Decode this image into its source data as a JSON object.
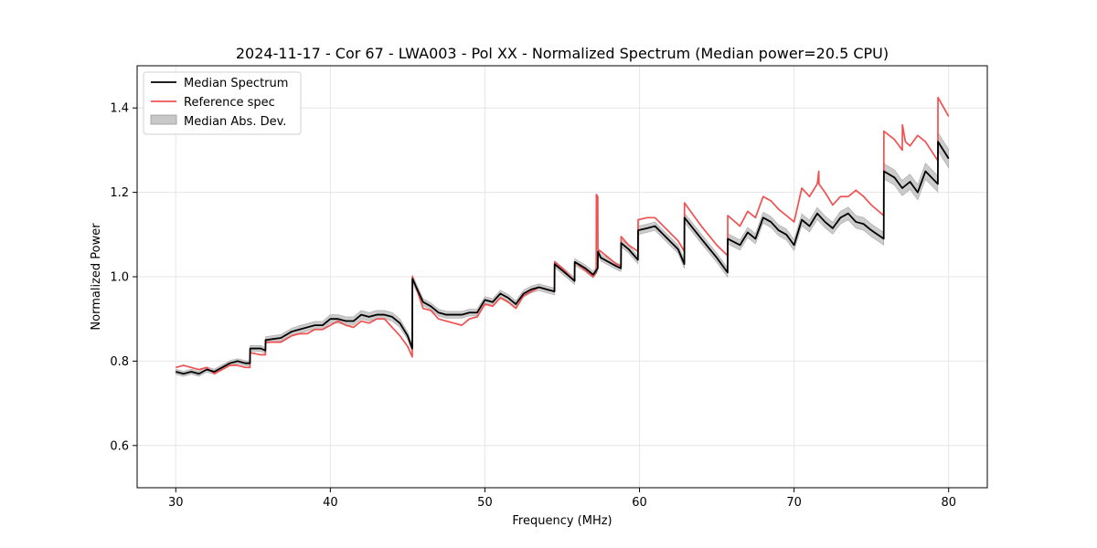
{
  "chart_data": {
    "type": "line",
    "title": "2024-11-17 - Cor 67 - LWA003 - Pol XX - Normalized Spectrum (Median power=20.5 CPU)",
    "xlabel": "Frequency (MHz)",
    "ylabel": "Normalized Power",
    "xlim": [
      27.5,
      82.5
    ],
    "ylim": [
      0.5,
      1.5
    ],
    "xticks": [
      30,
      40,
      50,
      60,
      70,
      80
    ],
    "yticks": [
      0.6,
      0.8,
      1.0,
      1.2,
      1.4
    ],
    "xtick_labels": [
      "30",
      "40",
      "50",
      "60",
      "70",
      "80"
    ],
    "ytick_labels": [
      "0.6",
      "0.8",
      "1.0",
      "1.2",
      "1.4"
    ],
    "grid": true,
    "legend_position": "top-left",
    "legend": [
      "Median Spectrum",
      "Reference spec",
      "Median Abs. Dev."
    ],
    "colors": {
      "median": "#000000",
      "reference": "#f05050",
      "mad": "#c8c8c8"
    },
    "series": [
      {
        "name": "Median Spectrum",
        "x": [
          30.0,
          30.5,
          31.0,
          31.5,
          32.0,
          32.5,
          33.0,
          33.5,
          34.0,
          34.5,
          34.8,
          34.81,
          35.5,
          35.8,
          35.81,
          36.8,
          37.5,
          38.0,
          38.5,
          39.0,
          39.5,
          40.0,
          40.5,
          41.0,
          41.5,
          42.0,
          42.5,
          43.0,
          43.5,
          44.0,
          44.5,
          45.0,
          45.3,
          45.31,
          46.0,
          46.5,
          47.0,
          47.5,
          48.0,
          48.5,
          49.0,
          49.5,
          50.0,
          50.5,
          51.0,
          51.5,
          52.0,
          52.5,
          53.0,
          53.5,
          54.0,
          54.5,
          54.51,
          55.0,
          55.8,
          55.81,
          56.5,
          57.0,
          57.3,
          57.31,
          57.5,
          58.0,
          58.5,
          58.8,
          58.81,
          59.3,
          59.9,
          59.91,
          60.5,
          61.0,
          62.5,
          62.9,
          62.91,
          64.0,
          65.0,
          65.7,
          65.71,
          66.5,
          67.0,
          67.5,
          68.0,
          68.5,
          69.0,
          69.5,
          70.0,
          70.5,
          71.0,
          71.5,
          72.0,
          72.5,
          73.0,
          73.5,
          74.0,
          74.5,
          75.0,
          75.8,
          75.81,
          76.5,
          77.0,
          77.5,
          78.0,
          78.5,
          79.3,
          79.31,
          80.0
        ],
        "values": [
          0.775,
          0.77,
          0.775,
          0.77,
          0.78,
          0.775,
          0.785,
          0.795,
          0.8,
          0.795,
          0.795,
          0.83,
          0.83,
          0.825,
          0.85,
          0.855,
          0.87,
          0.875,
          0.88,
          0.885,
          0.885,
          0.9,
          0.9,
          0.895,
          0.895,
          0.91,
          0.905,
          0.91,
          0.91,
          0.905,
          0.89,
          0.86,
          0.83,
          0.995,
          0.94,
          0.93,
          0.915,
          0.91,
          0.91,
          0.91,
          0.915,
          0.915,
          0.945,
          0.94,
          0.96,
          0.95,
          0.935,
          0.96,
          0.97,
          0.975,
          0.97,
          0.965,
          1.03,
          1.015,
          0.99,
          1.035,
          1.02,
          1.005,
          1.02,
          1.06,
          1.045,
          1.035,
          1.025,
          1.02,
          1.08,
          1.065,
          1.04,
          1.11,
          1.115,
          1.12,
          1.065,
          1.03,
          1.14,
          1.09,
          1.045,
          1.01,
          1.09,
          1.075,
          1.105,
          1.09,
          1.14,
          1.13,
          1.11,
          1.1,
          1.075,
          1.135,
          1.12,
          1.15,
          1.13,
          1.115,
          1.14,
          1.15,
          1.13,
          1.125,
          1.11,
          1.09,
          1.25,
          1.235,
          1.21,
          1.225,
          1.2,
          1.25,
          1.22,
          1.32,
          1.28
        ]
      },
      {
        "name": "Reference spec",
        "x": [
          30.0,
          30.5,
          31.0,
          31.5,
          32.0,
          32.5,
          33.0,
          33.5,
          34.0,
          34.5,
          34.8,
          34.81,
          35.5,
          35.8,
          35.81,
          36.8,
          37.5,
          38.0,
          38.5,
          39.0,
          39.5,
          40.0,
          40.5,
          41.0,
          41.5,
          42.0,
          42.5,
          43.0,
          43.5,
          44.0,
          44.5,
          45.0,
          45.3,
          45.31,
          46.0,
          46.5,
          47.0,
          47.5,
          48.0,
          48.5,
          49.0,
          49.5,
          50.0,
          50.5,
          51.0,
          51.5,
          52.0,
          52.5,
          53.0,
          53.5,
          54.0,
          54.5,
          54.51,
          55.0,
          55.8,
          55.81,
          56.5,
          57.0,
          57.2,
          57.21,
          57.3,
          57.31,
          57.5,
          58.0,
          58.5,
          58.8,
          58.81,
          59.3,
          59.9,
          59.91,
          60.5,
          61.0,
          62.5,
          62.9,
          62.91,
          64.0,
          65.0,
          65.7,
          65.71,
          66.5,
          67.0,
          67.5,
          68.0,
          68.5,
          69.0,
          69.5,
          70.0,
          70.5,
          71.0,
          71.5,
          71.6,
          71.61,
          72.0,
          72.5,
          73.0,
          73.5,
          74.0,
          74.5,
          75.0,
          75.8,
          75.81,
          76.5,
          77.0,
          77.01,
          77.2,
          77.5,
          78.0,
          78.5,
          79.3,
          79.31,
          80.0
        ],
        "values": [
          0.785,
          0.79,
          0.785,
          0.78,
          0.785,
          0.77,
          0.78,
          0.79,
          0.79,
          0.785,
          0.785,
          0.82,
          0.815,
          0.815,
          0.845,
          0.845,
          0.86,
          0.865,
          0.865,
          0.875,
          0.875,
          0.885,
          0.895,
          0.885,
          0.88,
          0.895,
          0.89,
          0.9,
          0.9,
          0.88,
          0.86,
          0.835,
          0.81,
          1.0,
          0.925,
          0.92,
          0.9,
          0.895,
          0.89,
          0.885,
          0.9,
          0.905,
          0.935,
          0.93,
          0.95,
          0.94,
          0.925,
          0.955,
          0.965,
          0.975,
          0.97,
          0.965,
          1.035,
          1.02,
          0.99,
          1.035,
          1.015,
          1.0,
          1.01,
          1.195,
          1.19,
          1.065,
          1.06,
          1.045,
          1.03,
          1.025,
          1.095,
          1.075,
          1.06,
          1.135,
          1.14,
          1.14,
          1.085,
          1.06,
          1.175,
          1.12,
          1.075,
          1.05,
          1.145,
          1.12,
          1.155,
          1.14,
          1.19,
          1.18,
          1.16,
          1.145,
          1.13,
          1.21,
          1.19,
          1.22,
          1.25,
          1.22,
          1.2,
          1.17,
          1.19,
          1.19,
          1.205,
          1.19,
          1.17,
          1.145,
          1.345,
          1.325,
          1.3,
          1.36,
          1.32,
          1.31,
          1.335,
          1.32,
          1.275,
          1.425,
          1.38
        ]
      },
      {
        "name": "Median Abs. Dev.",
        "x": [
          30.0,
          30.5,
          31.0,
          31.5,
          32.0,
          32.5,
          33.0,
          33.5,
          34.0,
          34.5,
          34.8,
          34.81,
          35.5,
          35.8,
          35.81,
          36.8,
          37.5,
          38.0,
          38.5,
          39.0,
          39.5,
          40.0,
          40.5,
          41.0,
          41.5,
          42.0,
          42.5,
          43.0,
          43.5,
          44.0,
          44.5,
          45.0,
          45.3,
          45.31,
          46.0,
          46.5,
          47.0,
          47.5,
          48.0,
          48.5,
          49.0,
          49.5,
          50.0,
          50.5,
          51.0,
          51.5,
          52.0,
          52.5,
          53.0,
          53.5,
          54.0,
          54.5,
          54.51,
          55.0,
          55.8,
          55.81,
          56.5,
          57.0,
          57.3,
          57.31,
          57.5,
          58.0,
          58.5,
          58.8,
          58.81,
          59.3,
          59.9,
          59.91,
          60.5,
          61.0,
          62.5,
          62.9,
          62.91,
          64.0,
          65.0,
          65.7,
          65.71,
          66.5,
          67.0,
          67.5,
          68.0,
          68.5,
          69.0,
          69.5,
          70.0,
          70.5,
          71.0,
          71.5,
          72.0,
          72.5,
          73.0,
          73.5,
          74.0,
          74.5,
          75.0,
          75.8,
          75.81,
          76.5,
          77.0,
          77.5,
          78.0,
          78.5,
          79.3,
          79.31,
          80.0
        ],
        "values": [
          0.006,
          0.006,
          0.006,
          0.006,
          0.006,
          0.006,
          0.006,
          0.006,
          0.006,
          0.006,
          0.006,
          0.007,
          0.007,
          0.007,
          0.008,
          0.008,
          0.008,
          0.009,
          0.009,
          0.009,
          0.009,
          0.01,
          0.01,
          0.01,
          0.01,
          0.01,
          0.01,
          0.01,
          0.01,
          0.01,
          0.01,
          0.009,
          0.009,
          0.009,
          0.008,
          0.008,
          0.008,
          0.008,
          0.008,
          0.008,
          0.008,
          0.008,
          0.008,
          0.008,
          0.008,
          0.008,
          0.008,
          0.008,
          0.008,
          0.008,
          0.008,
          0.008,
          0.008,
          0.008,
          0.008,
          0.008,
          0.008,
          0.008,
          0.008,
          0.008,
          0.008,
          0.008,
          0.008,
          0.008,
          0.009,
          0.009,
          0.009,
          0.01,
          0.01,
          0.01,
          0.01,
          0.01,
          0.011,
          0.011,
          0.011,
          0.011,
          0.012,
          0.012,
          0.012,
          0.012,
          0.013,
          0.013,
          0.013,
          0.013,
          0.013,
          0.014,
          0.014,
          0.014,
          0.014,
          0.014,
          0.015,
          0.015,
          0.015,
          0.015,
          0.015,
          0.015,
          0.018,
          0.018,
          0.018,
          0.018,
          0.018,
          0.019,
          0.019,
          0.022,
          0.022
        ]
      }
    ]
  }
}
